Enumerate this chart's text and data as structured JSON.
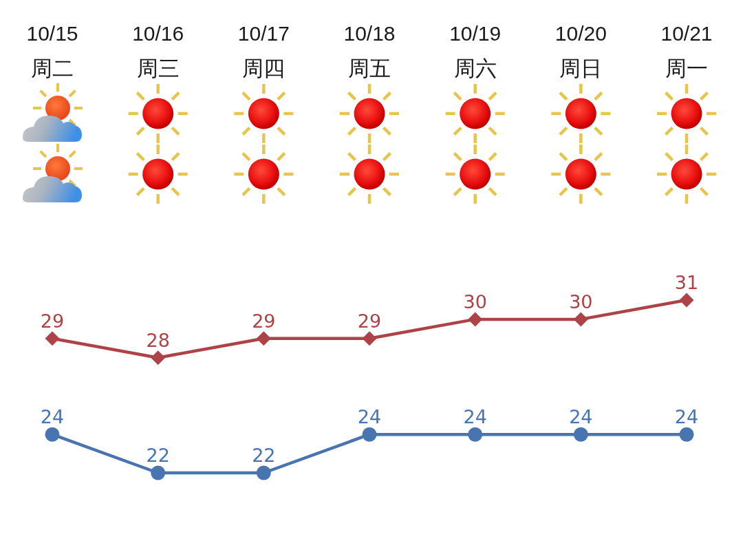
{
  "chart_data": {
    "type": "line",
    "categories": [
      "10/15\n周二",
      "10/16\n周三",
      "10/17\n周四",
      "10/18\n周五",
      "10/19\n周六",
      "10/20\n周日",
      "10/21\n周一"
    ],
    "series": [
      {
        "color": "#ad4247",
        "marker": "diamond",
        "values": [
          29,
          28,
          29,
          29,
          30,
          30,
          31
        ]
      },
      {
        "color": "#4874b0",
        "marker": "circle",
        "values": [
          24,
          22,
          22,
          24,
          24,
          24,
          24
        ]
      }
    ],
    "data_labels": true,
    "grid": false,
    "tick_labels": "x",
    "line_style": "solid"
  }
}
